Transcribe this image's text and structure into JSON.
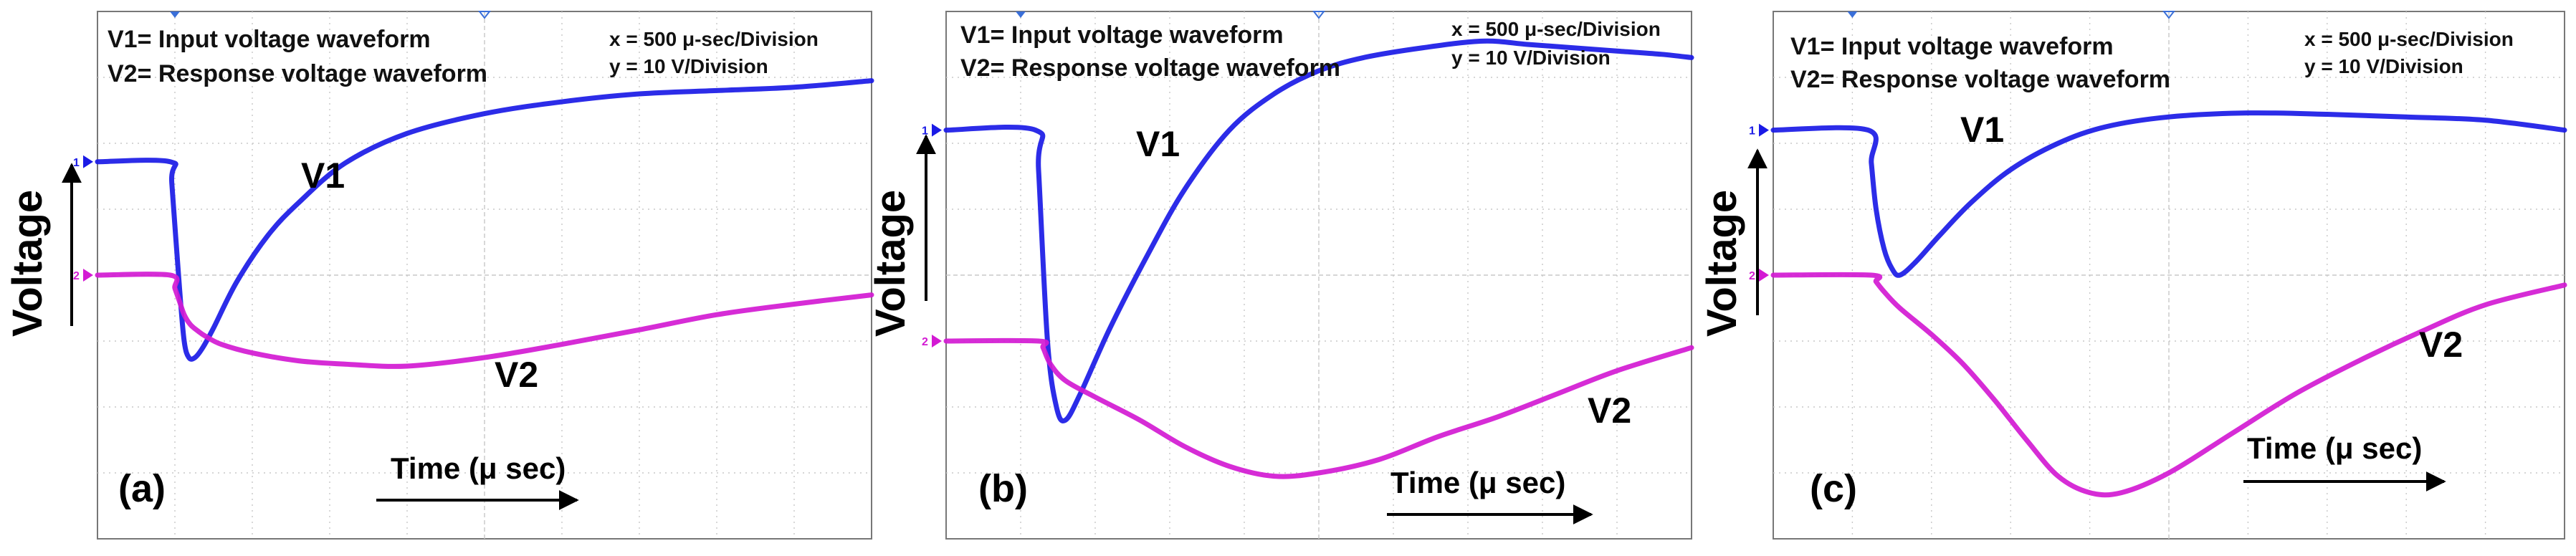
{
  "figure": {
    "y_axis_label": "Voltage",
    "x_axis_label": "Time (μ sec)"
  },
  "chart_data": [
    {
      "type": "line",
      "panel_label": "(a)",
      "legend": [
        "V1= Input voltage waveform",
        "V2= Response voltage waveform"
      ],
      "scale": [
        "x = 500 μ-sec/Division",
        "y = 10 V/Division"
      ],
      "xlabel": "Time (μ sec)",
      "ylabel": "Voltage",
      "xlim": [
        0,
        5000
      ],
      "ylim": [
        -40,
        40
      ],
      "grid": true,
      "channel_markers": [
        "1",
        "2"
      ],
      "series": [
        {
          "name": "V1",
          "color": "#1a1ae6",
          "x": [
            0,
            470,
            480,
            530,
            560,
            590,
            630,
            680,
            750,
            900,
            1100,
            1300,
            1600,
            2000,
            2500,
            3000,
            3500,
            4000,
            4500,
            5000
          ],
          "y": [
            17.2,
            17.2,
            14,
            -2,
            -10,
            -12.5,
            -12.5,
            -11,
            -8,
            -1,
            6,
            11,
            17,
            21.5,
            24.5,
            26.3,
            27.5,
            28,
            28.5,
            29.5
          ]
        },
        {
          "name": "V2",
          "color": "#d31ad3",
          "x": [
            0,
            470,
            500,
            530,
            560,
            600,
            650,
            700,
            800,
            1000,
            1300,
            1600,
            2000,
            2500,
            3000,
            3500,
            4000,
            4500,
            5000
          ],
          "y": [
            0,
            0,
            -2,
            -4,
            -6,
            -7.5,
            -8.5,
            -9.3,
            -10.5,
            -11.8,
            -13,
            -13.5,
            -13.8,
            -12.5,
            -10.5,
            -8.3,
            -6,
            -4.4,
            -3
          ]
        }
      ],
      "annotations": [
        "V1",
        "V2"
      ]
    },
    {
      "type": "line",
      "panel_label": "(b)",
      "legend": [
        "V1= Input voltage waveform",
        "V2= Response voltage waveform"
      ],
      "scale": [
        "x = 500 μ-sec/Division",
        "y = 10 V/Division"
      ],
      "xlabel": "Time (μ sec)",
      "ylabel": "Voltage",
      "xlim": [
        0,
        5000
      ],
      "ylim": [
        -40,
        40
      ],
      "grid": true,
      "channel_markers": [
        "1",
        "2"
      ],
      "series": [
        {
          "name": "V1",
          "color": "#1a1ae6",
          "x": [
            0,
            600,
            620,
            680,
            740,
            800,
            900,
            1100,
            1350,
            1600,
            1900,
            2200,
            2500,
            2800,
            3200,
            3600,
            3900,
            4200,
            4500,
            4800,
            5000
          ],
          "y": [
            22,
            22,
            16,
            -10,
            -20,
            -22,
            -18,
            -8,
            3,
            13,
            22,
            27.5,
            31,
            33,
            34.5,
            35.5,
            35,
            34.5,
            34,
            33.5,
            33
          ]
        },
        {
          "name": "V2",
          "color": "#d31ad3",
          "x": [
            0,
            620,
            650,
            700,
            800,
            1000,
            1300,
            1600,
            1900,
            2200,
            2500,
            2900,
            3300,
            3700,
            4100,
            4500,
            5000
          ],
          "y": [
            -10,
            -10,
            -11,
            -13.5,
            -16,
            -18.5,
            -22,
            -26,
            -29,
            -30.5,
            -30,
            -28,
            -24.5,
            -21.5,
            -18,
            -14.5,
            -11
          ]
        }
      ],
      "annotations": [
        "V1",
        "V2"
      ]
    },
    {
      "type": "line",
      "panel_label": "(c)",
      "legend": [
        "V1= Input voltage waveform",
        "V2= Response voltage waveform"
      ],
      "scale": [
        "x = 500 μ-sec/Division",
        "y = 10 V/Division"
      ],
      "xlabel": "Time (μ sec)",
      "ylabel": "Voltage",
      "xlim": [
        0,
        5000
      ],
      "ylim": [
        -40,
        40
      ],
      "grid": true,
      "channel_markers": [
        "1",
        "2"
      ],
      "series": [
        {
          "name": "V1",
          "color": "#1a1ae6",
          "x": [
            0,
            600,
            620,
            650,
            700,
            750,
            800,
            900,
            1050,
            1250,
            1500,
            1800,
            2100,
            2500,
            3000,
            3500,
            4000,
            4500,
            5000
          ],
          "y": [
            22,
            22,
            17,
            10,
            4,
            1,
            0,
            2,
            6,
            11,
            16,
            20,
            22.5,
            24,
            24.6,
            24.4,
            24,
            23.5,
            22
          ]
        },
        {
          "name": "V2",
          "color": "#d31ad3",
          "x": [
            0,
            620,
            650,
            700,
            800,
            1000,
            1200,
            1400,
            1600,
            1800,
            2000,
            2200,
            2500,
            2900,
            3300,
            3700,
            4100,
            4500,
            5000
          ],
          "y": [
            0,
            0,
            -1,
            -2.5,
            -5,
            -9,
            -13.5,
            -19,
            -25,
            -30.5,
            -33,
            -33,
            -30,
            -24,
            -18,
            -13,
            -8.5,
            -4.5,
            -1.5
          ]
        }
      ],
      "annotations": [
        "V1",
        "V2"
      ]
    }
  ]
}
